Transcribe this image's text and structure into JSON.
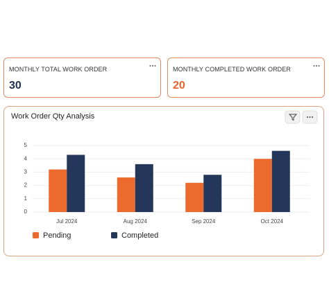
{
  "cards": [
    {
      "title": "MONTHLY TOTAL WORK ORDER",
      "value": 30,
      "color": "#1f2f4d"
    },
    {
      "title": "MONTHLY COMPLETED WORK ORDER",
      "value": 20,
      "color": "#e8622a"
    }
  ],
  "chart_data": {
    "type": "bar",
    "title": "Work Order Qty Analysis",
    "categories": [
      "Jul 2024",
      "Aug 2024",
      "Sep 2024",
      "Oct 2024"
    ],
    "series": [
      {
        "name": "Pending",
        "color": "#ec6a2c",
        "values": [
          3.2,
          2.6,
          2.2,
          4.0
        ]
      },
      {
        "name": "Completed",
        "color": "#24365a",
        "values": [
          4.3,
          3.6,
          2.8,
          4.6
        ]
      }
    ],
    "ylim": [
      0,
      5
    ],
    "yticks": [
      0,
      1,
      2,
      3,
      4,
      5
    ],
    "grid": true
  }
}
